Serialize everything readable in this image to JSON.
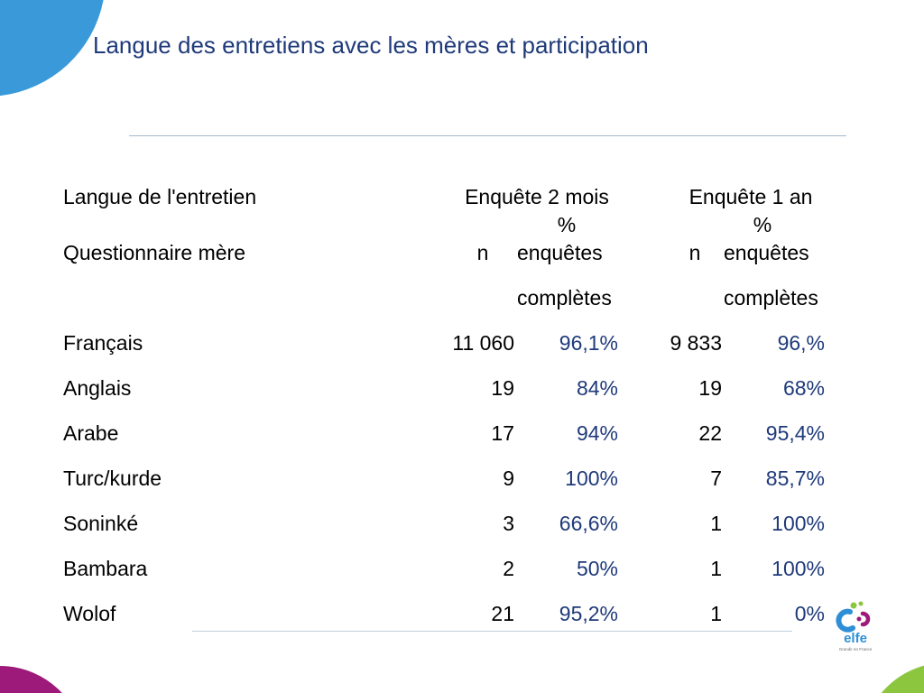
{
  "slide": {
    "title": "Langue des entretiens avec les mères et participation"
  },
  "table": {
    "header": {
      "language_label": "Langue de l'entretien",
      "group_2_months": "Enquête 2 mois",
      "group_1_year": "Enquête 1 an",
      "questionnaire_label": "Questionnaire mère",
      "n_2_months": "n",
      "n_1_year": "n",
      "percent_2_months_lines": [
        "%",
        "enquêtes",
        "complètes"
      ],
      "percent_1_year_lines": [
        "%",
        "enquêtes",
        "complètes"
      ]
    },
    "rows": [
      {
        "language": "Français",
        "n_2_months": "11 060",
        "percent_2_months": "96,1%",
        "n_1_year": "9 833",
        "percent_1_year": "96,%"
      },
      {
        "language": "Anglais",
        "n_2_months": "19",
        "percent_2_months": "84%",
        "n_1_year": "19",
        "percent_1_year": "68%"
      },
      {
        "language": "Arabe",
        "n_2_months": "17",
        "percent_2_months": "94%",
        "n_1_year": "22",
        "percent_1_year": "95,4%"
      },
      {
        "language": "Turc/kurde",
        "n_2_months": "9",
        "percent_2_months": "100%",
        "n_1_year": "7",
        "percent_1_year": "85,7%"
      },
      {
        "language": "Soninké",
        "n_2_months": "3",
        "percent_2_months": "66,6%",
        "n_1_year": "1",
        "percent_1_year": "100%"
      },
      {
        "language": "Bambara",
        "n_2_months": "2",
        "percent_2_months": "50%",
        "n_1_year": "1",
        "percent_1_year": "100%"
      },
      {
        "language": "Wolof",
        "n_2_months": "21",
        "percent_2_months": "95,2%",
        "n_1_year": "1",
        "percent_1_year": "0%"
      }
    ]
  },
  "logo": {
    "text": "elfe",
    "tagline": "Grandir en France",
    "icon": "elfe-logo-icon"
  },
  "colors": {
    "title": "#1f3a7a",
    "body_text": "#000000",
    "percent_text": "#1f3a7a",
    "corner_top_left": "#3a9ad9",
    "corner_bottom_left": "#9e1a7a",
    "corner_bottom_right": "#8cc63f",
    "divider_top": "#a3b8cc",
    "divider_bottom": "#c3cfdb",
    "logo_blue": "#2e8fd6",
    "logo_magenta": "#9e1a7a",
    "logo_green": "#8cc63f",
    "logo_tagline": "#6b6b6b"
  }
}
